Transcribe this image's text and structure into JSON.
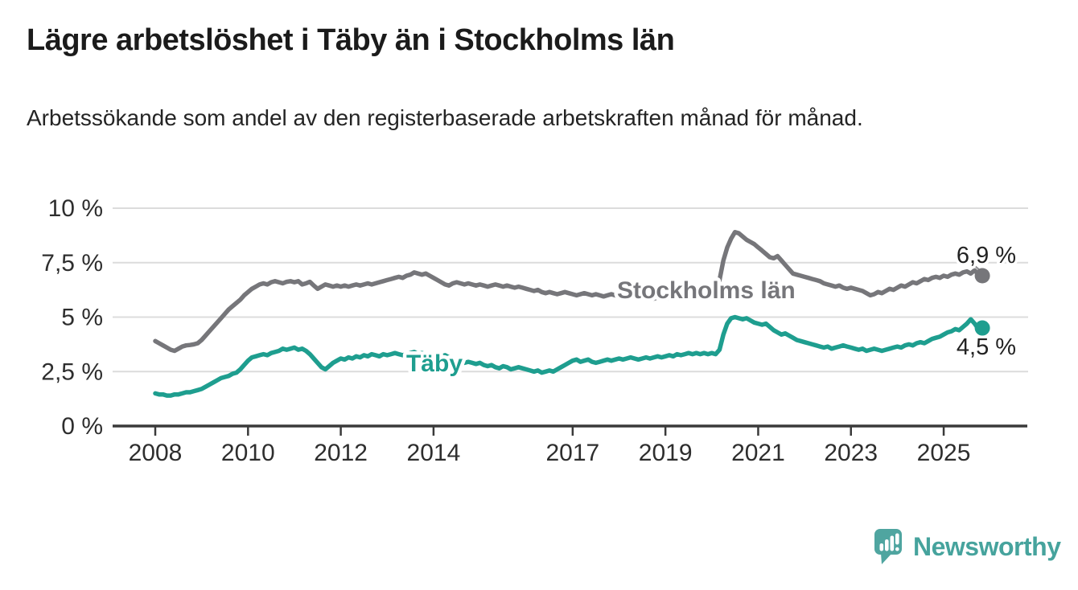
{
  "header": {
    "title": "Lägre arbetslöshet i Täby än i Stockholms län",
    "subtitle": "Arbetssökande som andel av den registerbaserade arbetskraften månad för månad."
  },
  "branding": {
    "logo_text": "Newsworthy",
    "logo_icon": "bar-chart-speech-bubble-icon",
    "logo_color": "#4fa5a0"
  },
  "chart_data": {
    "type": "line",
    "title": "Lägre arbetslöshet i Täby än i Stockholms län",
    "x_unit": "month",
    "x_start": "2008-01",
    "x_end": "2025-11",
    "x_tick_years": [
      2008,
      2010,
      2012,
      2014,
      2017,
      2019,
      2021,
      2023,
      2025
    ],
    "y_ticks": [
      0,
      2.5,
      5,
      7.5,
      10
    ],
    "y_tick_labels": [
      "0 %",
      "2,5 %",
      "5 %",
      "7,5 %",
      "10 %"
    ],
    "ylim": [
      0,
      10
    ],
    "grid": "horizontal",
    "legend": "inline-labels",
    "axis_color": "#3a3a3a",
    "grid_color": "#dcdcdc",
    "tick_text_color": "#2e2e2e",
    "series": [
      {
        "name": "Stockholms län",
        "color": "#76767a",
        "end_value": 6.9,
        "end_label": "6,9 %",
        "values": [
          3.9,
          3.8,
          3.7,
          3.6,
          3.5,
          3.45,
          3.55,
          3.65,
          3.7,
          3.72,
          3.75,
          3.8,
          3.95,
          4.15,
          4.35,
          4.55,
          4.75,
          4.95,
          5.15,
          5.35,
          5.5,
          5.65,
          5.8,
          6.0,
          6.15,
          6.3,
          6.4,
          6.5,
          6.55,
          6.5,
          6.6,
          6.65,
          6.6,
          6.55,
          6.62,
          6.65,
          6.6,
          6.65,
          6.5,
          6.55,
          6.62,
          6.45,
          6.3,
          6.4,
          6.5,
          6.45,
          6.4,
          6.45,
          6.4,
          6.45,
          6.4,
          6.45,
          6.5,
          6.45,
          6.5,
          6.55,
          6.5,
          6.55,
          6.6,
          6.65,
          6.7,
          6.75,
          6.8,
          6.85,
          6.8,
          6.9,
          6.95,
          7.05,
          7.0,
          6.95,
          7.0,
          6.9,
          6.8,
          6.7,
          6.6,
          6.5,
          6.45,
          6.55,
          6.6,
          6.55,
          6.5,
          6.55,
          6.5,
          6.45,
          6.5,
          6.45,
          6.4,
          6.45,
          6.5,
          6.45,
          6.4,
          6.45,
          6.4,
          6.35,
          6.4,
          6.35,
          6.3,
          6.25,
          6.2,
          6.25,
          6.15,
          6.1,
          6.15,
          6.1,
          6.05,
          6.1,
          6.15,
          6.1,
          6.05,
          6.0,
          6.05,
          6.1,
          6.05,
          6.0,
          6.05,
          6.0,
          5.95,
          6.0,
          6.05,
          6.0,
          5.95,
          5.9,
          5.95,
          6.0,
          5.95,
          5.85,
          5.9,
          5.95,
          5.9,
          5.85,
          5.9,
          5.95,
          5.9,
          5.85,
          5.9,
          5.95,
          6.0,
          5.9,
          5.85,
          5.95,
          6.0,
          6.05,
          6.1,
          6.15,
          6.2,
          6.3,
          6.7,
          7.6,
          8.2,
          8.6,
          8.9,
          8.85,
          8.7,
          8.55,
          8.45,
          8.35,
          8.2,
          8.05,
          7.9,
          7.75,
          7.7,
          7.8,
          7.6,
          7.4,
          7.2,
          7.0,
          6.95,
          6.9,
          6.85,
          6.8,
          6.75,
          6.7,
          6.65,
          6.55,
          6.5,
          6.45,
          6.4,
          6.45,
          6.35,
          6.3,
          6.35,
          6.3,
          6.25,
          6.2,
          6.1,
          6.0,
          6.05,
          6.15,
          6.1,
          6.2,
          6.3,
          6.25,
          6.35,
          6.45,
          6.4,
          6.5,
          6.6,
          6.55,
          6.65,
          6.75,
          6.7,
          6.8,
          6.85,
          6.8,
          6.9,
          6.85,
          6.95,
          7.0,
          6.95,
          7.05,
          7.1,
          7.0,
          7.15,
          6.95,
          6.9
        ]
      },
      {
        "name": "Täby",
        "color": "#1e9e8f",
        "end_value": 4.5,
        "end_label": "4,5 %",
        "values": [
          1.5,
          1.45,
          1.45,
          1.4,
          1.4,
          1.45,
          1.45,
          1.5,
          1.55,
          1.55,
          1.6,
          1.65,
          1.7,
          1.8,
          1.9,
          2.0,
          2.1,
          2.2,
          2.25,
          2.3,
          2.4,
          2.45,
          2.6,
          2.8,
          3.0,
          3.15,
          3.2,
          3.25,
          3.3,
          3.25,
          3.35,
          3.4,
          3.45,
          3.55,
          3.5,
          3.55,
          3.6,
          3.5,
          3.55,
          3.45,
          3.3,
          3.1,
          2.9,
          2.7,
          2.6,
          2.75,
          2.9,
          3.0,
          3.1,
          3.05,
          3.15,
          3.1,
          3.2,
          3.15,
          3.25,
          3.2,
          3.3,
          3.25,
          3.2,
          3.3,
          3.25,
          3.3,
          3.35,
          3.3,
          3.25,
          3.3,
          3.35,
          3.4,
          3.3,
          3.35,
          3.3,
          3.25,
          3.3,
          3.25,
          3.2,
          3.25,
          3.15,
          3.1,
          3.0,
          2.95,
          2.9,
          2.95,
          2.9,
          2.85,
          2.9,
          2.8,
          2.75,
          2.8,
          2.7,
          2.65,
          2.75,
          2.7,
          2.6,
          2.65,
          2.7,
          2.65,
          2.6,
          2.55,
          2.5,
          2.55,
          2.45,
          2.5,
          2.55,
          2.5,
          2.6,
          2.7,
          2.8,
          2.9,
          3.0,
          3.05,
          2.95,
          3.0,
          3.05,
          2.95,
          2.9,
          2.95,
          3.0,
          3.05,
          3.0,
          3.05,
          3.1,
          3.05,
          3.1,
          3.15,
          3.1,
          3.05,
          3.1,
          3.15,
          3.1,
          3.15,
          3.2,
          3.15,
          3.2,
          3.25,
          3.2,
          3.3,
          3.25,
          3.3,
          3.35,
          3.3,
          3.35,
          3.3,
          3.35,
          3.3,
          3.35,
          3.3,
          3.5,
          4.2,
          4.7,
          4.95,
          5.0,
          4.95,
          4.9,
          4.95,
          4.85,
          4.75,
          4.7,
          4.65,
          4.7,
          4.55,
          4.4,
          4.3,
          4.2,
          4.25,
          4.15,
          4.05,
          3.95,
          3.9,
          3.85,
          3.8,
          3.75,
          3.7,
          3.65,
          3.6,
          3.65,
          3.55,
          3.6,
          3.65,
          3.7,
          3.65,
          3.6,
          3.55,
          3.5,
          3.55,
          3.45,
          3.5,
          3.55,
          3.5,
          3.45,
          3.5,
          3.55,
          3.6,
          3.65,
          3.6,
          3.7,
          3.75,
          3.7,
          3.8,
          3.85,
          3.8,
          3.9,
          4.0,
          4.05,
          4.1,
          4.2,
          4.3,
          4.35,
          4.45,
          4.4,
          4.55,
          4.7,
          4.9,
          4.7,
          4.45,
          4.5
        ]
      }
    ]
  }
}
